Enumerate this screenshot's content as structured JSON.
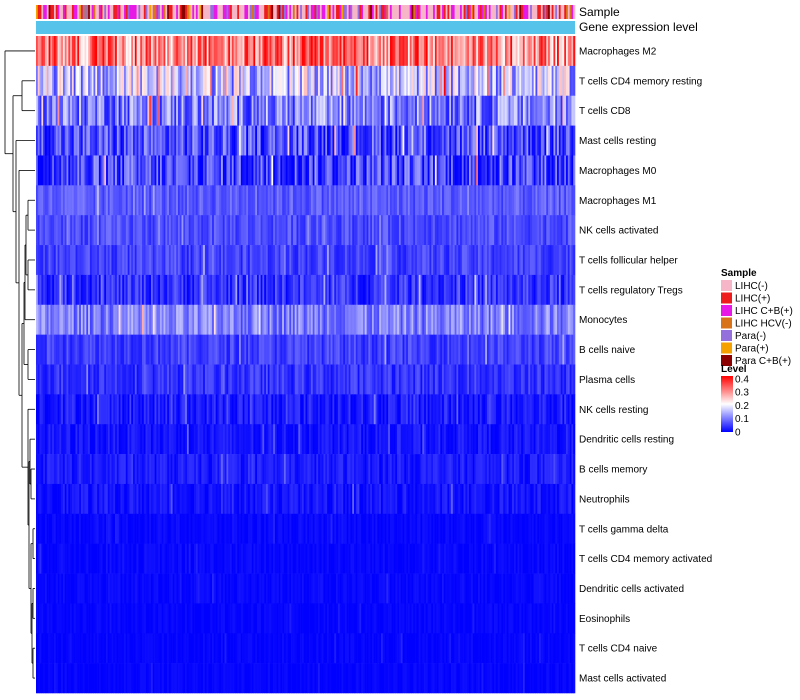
{
  "chart_data": {
    "type": "heatmap",
    "title": "",
    "annotation_tracks": [
      "Sample",
      "Gene expression level"
    ],
    "annotation_track_color": "#56c3ea",
    "rows": [
      {
        "label": "Macrophages M2",
        "mean": 0.3,
        "spread": 0.1
      },
      {
        "label": "T cells CD4 memory resting",
        "mean": 0.15,
        "spread": 0.1
      },
      {
        "label": "T cells CD8",
        "mean": 0.1,
        "spread": 0.08
      },
      {
        "label": "Mast cells resting",
        "mean": 0.06,
        "spread": 0.07
      },
      {
        "label": "Macrophages M0",
        "mean": 0.05,
        "spread": 0.08
      },
      {
        "label": "Macrophages M1",
        "mean": 0.07,
        "spread": 0.03
      },
      {
        "label": "NK cells activated",
        "mean": 0.06,
        "spread": 0.03
      },
      {
        "label": "T cells follicular helper",
        "mean": 0.05,
        "spread": 0.03
      },
      {
        "label": "T cells regulatory  Tregs",
        "mean": 0.04,
        "spread": 0.04
      },
      {
        "label": "Monocytes",
        "mean": 0.1,
        "spread": 0.05
      },
      {
        "label": "B cells naive",
        "mean": 0.05,
        "spread": 0.03
      },
      {
        "label": "Plasma cells",
        "mean": 0.04,
        "spread": 0.03
      },
      {
        "label": "NK cells resting",
        "mean": 0.02,
        "spread": 0.03
      },
      {
        "label": "Dendritic cells resting",
        "mean": 0.015,
        "spread": 0.02
      },
      {
        "label": "B cells memory",
        "mean": 0.02,
        "spread": 0.02
      },
      {
        "label": "Neutrophils",
        "mean": 0.015,
        "spread": 0.02
      },
      {
        "label": "T cells gamma delta",
        "mean": 0.005,
        "spread": 0.01
      },
      {
        "label": "T cells CD4 memory activated",
        "mean": 0.005,
        "spread": 0.01
      },
      {
        "label": "Dendritic cells activated",
        "mean": 0.005,
        "spread": 0.01
      },
      {
        "label": "Eosinophils",
        "mean": 0.003,
        "spread": 0.008
      },
      {
        "label": "T cells CD4 naive",
        "mean": 0.003,
        "spread": 0.008
      },
      {
        "label": "Mast cells activated",
        "mean": 0.003,
        "spread": 0.008
      }
    ],
    "n_samples": 300,
    "sample_legend": {
      "title": "Sample",
      "entries": [
        {
          "label": "LIHC(-)",
          "color": "#f7b6c8"
        },
        {
          "label": "LIHC(+)",
          "color": "#ee1c1c"
        },
        {
          "label": "LIHC C+B(+)",
          "color": "#e619e6"
        },
        {
          "label": "LIHC HCV(-)",
          "color": "#d9731a"
        },
        {
          "label": "Para(-)",
          "color": "#9370db"
        },
        {
          "label": "Para(+)",
          "color": "#f5a100"
        },
        {
          "label": "Para C+B(+)",
          "color": "#8b0000"
        }
      ]
    },
    "level_legend": {
      "title": "Level",
      "range": [
        0,
        0.4
      ],
      "ticks": [
        "0.4",
        "0.3",
        "0.2",
        "0.1",
        "0"
      ],
      "colors": {
        "low": "#0000ff",
        "mid": "#ffffff",
        "high": "#ff0000"
      }
    }
  }
}
